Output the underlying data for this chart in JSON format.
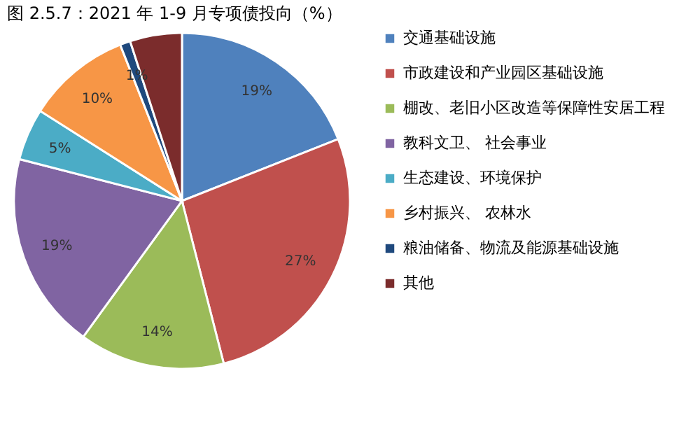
{
  "chart_data": {
    "type": "pie",
    "title": "图 2.5.7：2021 年 1-9 月专项债投向（%）",
    "categories": [
      "交通基础设施",
      "市政建设和产业园区基础设施",
      "棚改、老旧小区改造等保障性安居工程",
      "教科文卫、 社会事业",
      "生态建设、环境保护",
      "乡村振兴、 农林水",
      "粮油储备、物流及能源基础设施",
      "其他"
    ],
    "values": [
      19,
      27,
      14,
      19,
      5,
      10,
      1,
      5
    ],
    "value_labels": [
      "19%",
      "27%",
      "14%",
      "19%",
      "5%",
      "10%",
      "1%",
      null
    ],
    "colors": [
      "#4f81bd",
      "#c0504d",
      "#9bbb59",
      "#8064a2",
      "#4bacc6",
      "#f79646",
      "#1f497d",
      "#7b2c2c"
    ],
    "legend": "right"
  }
}
